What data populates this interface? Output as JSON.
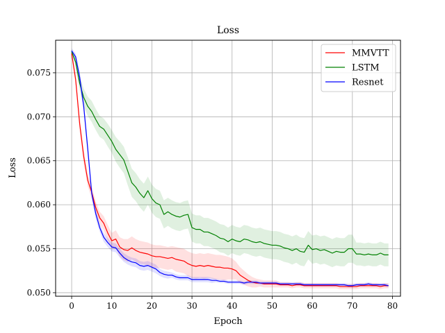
{
  "chart_data": {
    "type": "line",
    "title": "Loss",
    "xlabel": "Epoch",
    "ylabel": "Loss",
    "xlim": [
      -4,
      82
    ],
    "ylim": [
      0.0496,
      0.0787
    ],
    "xticks": [
      0,
      10,
      20,
      30,
      40,
      50,
      60,
      70,
      80
    ],
    "yticks": [
      0.05,
      0.055,
      0.06,
      0.065,
      0.07,
      0.075
    ],
    "ytick_labels": [
      "0.050",
      "0.055",
      "0.060",
      "0.065",
      "0.070",
      "0.075"
    ],
    "grid": true,
    "legend_position": "top-right",
    "series": [
      {
        "name": "MMVTT",
        "color": "#ff0000",
        "band_color": "#ff0000",
        "x": [
          0,
          1,
          2,
          3,
          4,
          5,
          6,
          7,
          8,
          9,
          10,
          11,
          12,
          13,
          14,
          15,
          16,
          17,
          18,
          19,
          20,
          21,
          22,
          23,
          24,
          25,
          26,
          27,
          28,
          29,
          30,
          31,
          32,
          33,
          34,
          35,
          36,
          37,
          38,
          39,
          40,
          41,
          42,
          43,
          44,
          45,
          46,
          47,
          48,
          49,
          50,
          51,
          52,
          53,
          54,
          55,
          56,
          57,
          58,
          59,
          60,
          61,
          62,
          63,
          64,
          65,
          66,
          67,
          68,
          69,
          70,
          71,
          72,
          73,
          74,
          75,
          76,
          77,
          78,
          79
        ],
        "y": [
          0.0772,
          0.0742,
          0.0692,
          0.0655,
          0.0628,
          0.0614,
          0.0597,
          0.0585,
          0.0579,
          0.0568,
          0.0559,
          0.0561,
          0.0552,
          0.0549,
          0.0548,
          0.0551,
          0.0548,
          0.0546,
          0.0545,
          0.0544,
          0.0542,
          0.0541,
          0.0541,
          0.054,
          0.0539,
          0.054,
          0.0538,
          0.0537,
          0.0536,
          0.0533,
          0.0531,
          0.053,
          0.0531,
          0.053,
          0.0531,
          0.053,
          0.0529,
          0.0529,
          0.0528,
          0.0528,
          0.0527,
          0.0525,
          0.052,
          0.0517,
          0.0514,
          0.0512,
          0.0511,
          0.0511,
          0.051,
          0.051,
          0.051,
          0.051,
          0.0509,
          0.0509,
          0.0509,
          0.0508,
          0.0509,
          0.0509,
          0.0508,
          0.0508,
          0.0508,
          0.0508,
          0.0508,
          0.0508,
          0.0508,
          0.0508,
          0.0508,
          0.0507,
          0.0507,
          0.0507,
          0.0507,
          0.0507,
          0.0508,
          0.0508,
          0.0508,
          0.0508,
          0.0508,
          0.0507,
          0.0508,
          0.0508
        ],
        "band": [
          0.0003,
          0.0006,
          0.0008,
          0.0008,
          0.0007,
          0.0007,
          0.0007,
          0.0007,
          0.0008,
          0.0009,
          0.0009,
          0.001,
          0.0011,
          0.0012,
          0.0013,
          0.0013,
          0.0013,
          0.0013,
          0.0013,
          0.0013,
          0.0013,
          0.0013,
          0.0013,
          0.0013,
          0.0013,
          0.0013,
          0.0014,
          0.0014,
          0.0014,
          0.0014,
          0.0014,
          0.0014,
          0.0014,
          0.0014,
          0.0014,
          0.0014,
          0.0014,
          0.0014,
          0.0014,
          0.0013,
          0.0012,
          0.001,
          0.0009,
          0.0008,
          0.0007,
          0.0006,
          0.0005,
          0.0004,
          0.0004,
          0.0004,
          0.0004,
          0.0004,
          0.0003,
          0.0003,
          0.0003,
          0.0003,
          0.0003,
          0.0003,
          0.0003,
          0.0003,
          0.0003,
          0.0003,
          0.0003,
          0.0003,
          0.0003,
          0.0003,
          0.0003,
          0.0003,
          0.0003,
          0.0003,
          0.0003,
          0.0003,
          0.0003,
          0.0003,
          0.0003,
          0.0003,
          0.0003,
          0.0003,
          0.0003,
          0.0003
        ]
      },
      {
        "name": "LSTM",
        "color": "#008000",
        "band_color": "#008000",
        "x": [
          0,
          1,
          2,
          3,
          4,
          5,
          6,
          7,
          8,
          9,
          10,
          11,
          12,
          13,
          14,
          15,
          16,
          17,
          18,
          19,
          20,
          21,
          22,
          23,
          24,
          25,
          26,
          27,
          28,
          29,
          30,
          31,
          32,
          33,
          34,
          35,
          36,
          37,
          38,
          39,
          40,
          41,
          42,
          43,
          44,
          45,
          46,
          47,
          48,
          49,
          50,
          51,
          52,
          53,
          54,
          55,
          56,
          57,
          58,
          59,
          60,
          61,
          62,
          63,
          64,
          65,
          66,
          67,
          68,
          69,
          70,
          71,
          72,
          73,
          74,
          75,
          76,
          77,
          78,
          79
        ],
        "y": [
          0.0774,
          0.0762,
          0.0738,
          0.0722,
          0.0712,
          0.0706,
          0.0697,
          0.0689,
          0.0686,
          0.0679,
          0.0672,
          0.0663,
          0.0657,
          0.0651,
          0.0638,
          0.0625,
          0.062,
          0.0613,
          0.0608,
          0.0616,
          0.0607,
          0.0602,
          0.06,
          0.0589,
          0.0592,
          0.0589,
          0.0587,
          0.0586,
          0.0588,
          0.0589,
          0.0574,
          0.0572,
          0.0572,
          0.0569,
          0.0569,
          0.0567,
          0.0565,
          0.0562,
          0.0561,
          0.0558,
          0.0561,
          0.0559,
          0.0558,
          0.0561,
          0.056,
          0.0558,
          0.0557,
          0.0558,
          0.0556,
          0.0555,
          0.0554,
          0.0554,
          0.0553,
          0.0551,
          0.055,
          0.0548,
          0.055,
          0.0547,
          0.0546,
          0.0554,
          0.0549,
          0.055,
          0.0548,
          0.0549,
          0.0547,
          0.0545,
          0.0547,
          0.0546,
          0.0546,
          0.055,
          0.055,
          0.0544,
          0.0544,
          0.0543,
          0.0544,
          0.0543,
          0.0543,
          0.0545,
          0.0543,
          0.0543
        ],
        "band": [
          0.0003,
          0.0005,
          0.0008,
          0.001,
          0.0011,
          0.0012,
          0.0012,
          0.0012,
          0.0012,
          0.0013,
          0.0013,
          0.0014,
          0.0015,
          0.0015,
          0.0016,
          0.0016,
          0.0016,
          0.0016,
          0.0016,
          0.0016,
          0.0016,
          0.0016,
          0.0016,
          0.0016,
          0.0016,
          0.0016,
          0.0016,
          0.0016,
          0.0016,
          0.0016,
          0.0016,
          0.0016,
          0.0016,
          0.0016,
          0.0016,
          0.0016,
          0.0016,
          0.0016,
          0.0016,
          0.0016,
          0.0016,
          0.0016,
          0.0016,
          0.0016,
          0.0016,
          0.0016,
          0.0016,
          0.0016,
          0.0016,
          0.0016,
          0.0016,
          0.0016,
          0.0016,
          0.0016,
          0.0016,
          0.0016,
          0.0016,
          0.0016,
          0.0016,
          0.0016,
          0.0016,
          0.0016,
          0.0016,
          0.0016,
          0.0016,
          0.0016,
          0.0016,
          0.0016,
          0.0016,
          0.0016,
          0.0016,
          0.0013,
          0.0013,
          0.0013,
          0.0013,
          0.0013,
          0.0013,
          0.0013,
          0.0013,
          0.0013
        ]
      },
      {
        "name": "Resnet",
        "color": "#0000ff",
        "band_color": "#0000ff",
        "x": [
          0,
          1,
          2,
          3,
          4,
          5,
          6,
          7,
          8,
          9,
          10,
          11,
          12,
          13,
          14,
          15,
          16,
          17,
          18,
          19,
          20,
          21,
          22,
          23,
          24,
          25,
          26,
          27,
          28,
          29,
          30,
          31,
          32,
          33,
          34,
          35,
          36,
          37,
          38,
          39,
          40,
          41,
          42,
          43,
          44,
          45,
          46,
          47,
          48,
          49,
          50,
          51,
          52,
          53,
          54,
          55,
          56,
          57,
          58,
          59,
          60,
          61,
          62,
          63,
          64,
          65,
          66,
          67,
          68,
          69,
          70,
          71,
          72,
          73,
          74,
          75,
          76,
          77,
          78,
          79
        ],
        "y": [
          0.0775,
          0.0768,
          0.0745,
          0.0712,
          0.0664,
          0.0613,
          0.059,
          0.0574,
          0.0563,
          0.0557,
          0.0552,
          0.0551,
          0.0545,
          0.054,
          0.0537,
          0.0535,
          0.0534,
          0.0531,
          0.053,
          0.0531,
          0.0529,
          0.0527,
          0.0523,
          0.0521,
          0.052,
          0.052,
          0.0518,
          0.0517,
          0.0517,
          0.0517,
          0.0515,
          0.0515,
          0.0515,
          0.0515,
          0.0515,
          0.0514,
          0.0514,
          0.0513,
          0.0513,
          0.0512,
          0.0512,
          0.0512,
          0.0512,
          0.0511,
          0.0512,
          0.0512,
          0.0512,
          0.0511,
          0.0511,
          0.0511,
          0.0511,
          0.0511,
          0.051,
          0.051,
          0.051,
          0.051,
          0.051,
          0.051,
          0.0509,
          0.0509,
          0.0509,
          0.0509,
          0.0509,
          0.0509,
          0.0509,
          0.0509,
          0.0509,
          0.0509,
          0.0509,
          0.0508,
          0.0508,
          0.0509,
          0.0509,
          0.0509,
          0.051,
          0.0509,
          0.0509,
          0.0509,
          0.0509,
          0.0508
        ],
        "band": [
          0.0003,
          0.0004,
          0.0006,
          0.0007,
          0.0008,
          0.0007,
          0.0006,
          0.0005,
          0.0005,
          0.0005,
          0.0005,
          0.0005,
          0.0005,
          0.0005,
          0.0005,
          0.0005,
          0.0005,
          0.0005,
          0.0005,
          0.0005,
          0.0005,
          0.0005,
          0.0004,
          0.0004,
          0.0004,
          0.0003,
          0.0003,
          0.0003,
          0.0003,
          0.0003,
          0.0003,
          0.0003,
          0.0003,
          0.0003,
          0.0003,
          0.0003,
          0.0002,
          0.0002,
          0.0002,
          0.0002,
          0.0002,
          0.0002,
          0.0002,
          0.0002,
          0.0002,
          0.0002,
          0.0002,
          0.0002,
          0.0002,
          0.0002,
          0.0002,
          0.0002,
          0.0002,
          0.0002,
          0.0002,
          0.0002,
          0.0002,
          0.0002,
          0.0002,
          0.0002,
          0.0002,
          0.0002,
          0.0002,
          0.0002,
          0.0002,
          0.0002,
          0.0002,
          0.0002,
          0.0002,
          0.0002,
          0.0002,
          0.0002,
          0.0002,
          0.0002,
          0.0002,
          0.0002,
          0.0002,
          0.0002,
          0.0002,
          0.0002
        ]
      }
    ]
  }
}
